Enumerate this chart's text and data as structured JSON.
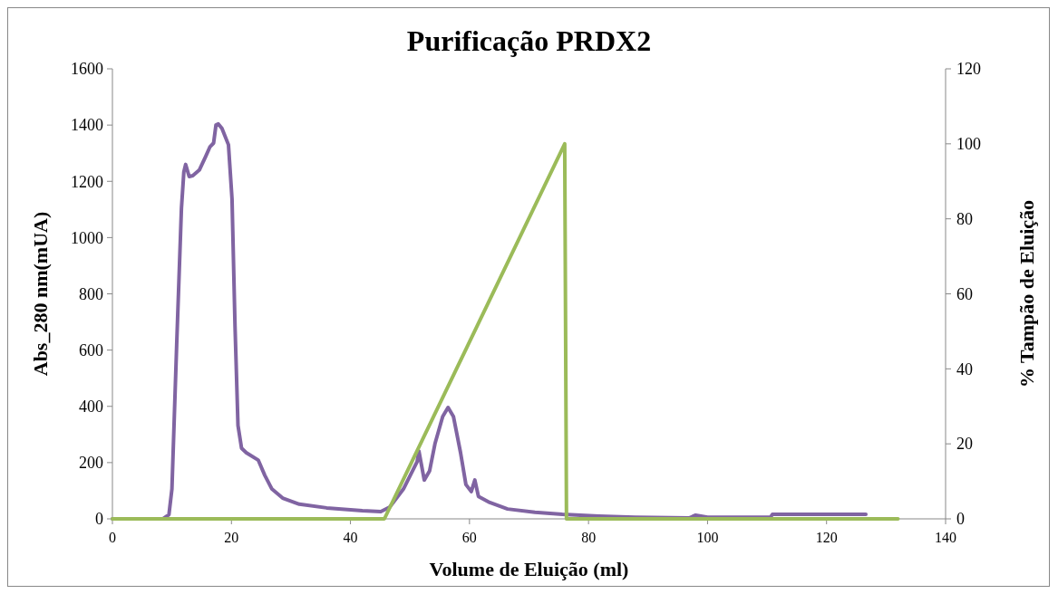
{
  "chart_data": {
    "type": "line",
    "title": "Purificação PRDX2",
    "xlabel": "Volume de Eluição (ml)",
    "ylabel": "Abs_280 nm(mUA)",
    "y2label": "% Tampão de Eluição",
    "xlim": [
      0,
      140
    ],
    "xticks": [
      0,
      20,
      40,
      60,
      80,
      100,
      120,
      140
    ],
    "ylim": [
      0,
      1600
    ],
    "yticks": [
      0,
      200,
      400,
      600,
      800,
      1000,
      1200,
      1400,
      1600
    ],
    "y2lim": [
      0,
      120
    ],
    "y2ticks": [
      0,
      20,
      40,
      60,
      80,
      100,
      120
    ],
    "grid": false,
    "series": [
      {
        "color": "#8064a2",
        "x": [
          0,
          8.5,
          9.5,
          10,
          10.8,
          11.6,
          12,
          12.3,
          12.9,
          13.5,
          14.6,
          15.7,
          16.4,
          17,
          17.4,
          17.8,
          18.4,
          18.9,
          19.5,
          20.1,
          20.6,
          21.1,
          21.7,
          22.5,
          24.5,
          25.6,
          26.8,
          28.6,
          31.4,
          36,
          42,
          45.1,
          46.6,
          48.9,
          51.2,
          51.5,
          52.4,
          53.3,
          54.2,
          55.5,
          56.4,
          57.3,
          58.5,
          59.4,
          60.3,
          60.9,
          61.5,
          63.4,
          66.4,
          71,
          75.6,
          81.7,
          87.8,
          96.9,
          98,
          100,
          110.6,
          110.9,
          126.6
        ],
        "values": [
          0,
          0,
          15,
          106,
          620,
          1105,
          1233,
          1260,
          1217,
          1220,
          1240,
          1290,
          1323,
          1336,
          1400,
          1404,
          1388,
          1362,
          1330,
          1136,
          686,
          332,
          251,
          235,
          209,
          155,
          106,
          74,
          52,
          39,
          29,
          26,
          42,
          106,
          203,
          241,
          138,
          171,
          267,
          364,
          396,
          364,
          235,
          122,
          97,
          138,
          80,
          58,
          35,
          23,
          16,
          10,
          6,
          3,
          13,
          6,
          6,
          16,
          16
        ]
      },
      {
        "color": "#9bbb59",
        "axis": "y2",
        "x": [
          0,
          45.7,
          76,
          76.3,
          132
        ],
        "values": [
          0,
          0,
          100,
          0,
          0
        ]
      }
    ]
  }
}
